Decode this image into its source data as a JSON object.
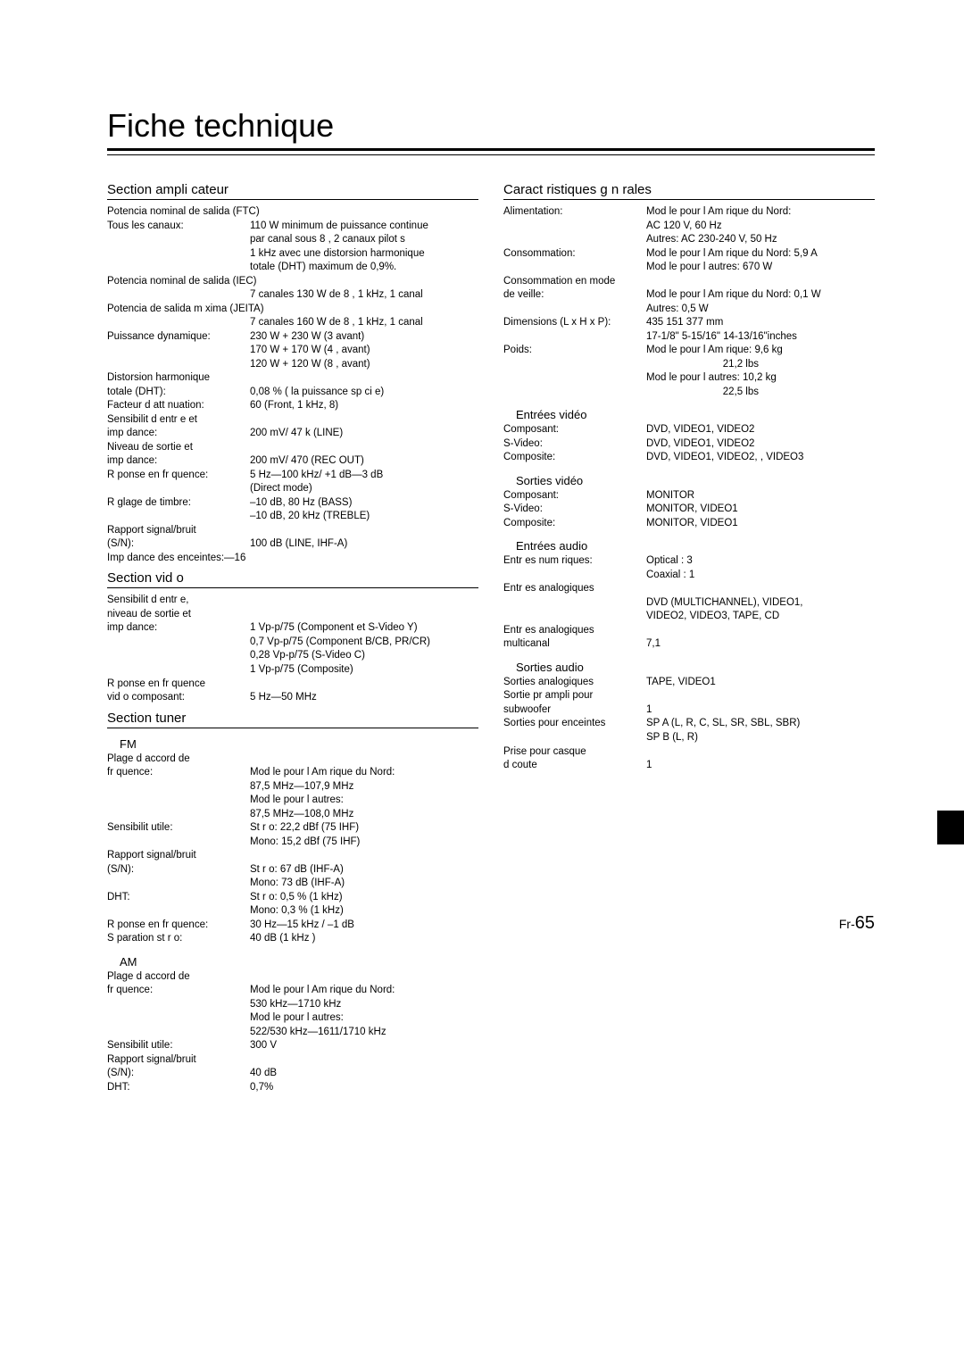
{
  "title": "Fiche technique",
  "left": {
    "sections": [
      {
        "head": "Section ampli cateur",
        "blocks": [
          {
            "type": "single",
            "text": "Potencia nominal de salida (FTC)"
          },
          {
            "type": "row",
            "label": "Tous les canaux:",
            "value": "110 W minimum de puissance continue"
          },
          {
            "type": "value",
            "text": "par canal sous 8 , 2 canaux pilot s"
          },
          {
            "type": "value",
            "text": "1 kHz avec une distorsion harmonique"
          },
          {
            "type": "value",
            "text": "totale (DHT) maximum de 0,9%."
          },
          {
            "type": "single",
            "text": "Potencia nominal de salida (IEC)"
          },
          {
            "type": "value",
            "text": "7 canales  130 W de 8 , 1 kHz, 1 canal"
          },
          {
            "type": "single",
            "text": "Potencia de salida m xima (JEITA)"
          },
          {
            "type": "value",
            "text": "7 canales  160 W de 8 , 1 kHz, 1 canal"
          },
          {
            "type": "row",
            "label": "Puissance dynamique:",
            "value": "230 W + 230 W (3 avant)"
          },
          {
            "type": "value",
            "text": "170 W + 170 W (4 , avant)"
          },
          {
            "type": "value",
            "text": "120 W + 120 W (8 , avant)"
          },
          {
            "type": "single",
            "text": "Distorsion harmonique"
          },
          {
            "type": "row",
            "label": "totale (DHT):",
            "value": "0,08 % ( la puissance sp ci e)"
          },
          {
            "type": "row",
            "label": "Facteur d att nuation:",
            "value": "60 (Front, 1 kHz, 8)"
          },
          {
            "type": "single",
            "text": "Sensibilit  d entr e et"
          },
          {
            "type": "row",
            "label": "imp dance:",
            "value": "200 mV/ 47 k (LINE)"
          },
          {
            "type": "single",
            "text": "Niveau de sortie et"
          },
          {
            "type": "row",
            "label": "imp dance:",
            "value": "200 mV/ 470  (REC OUT)"
          },
          {
            "type": "row",
            "label": "R ponse en fr quence:",
            "value": "5 Hz—100 kHz/ +1 dB—3 dB"
          },
          {
            "type": "value",
            "text": "(Direct mode)"
          },
          {
            "type": "row",
            "label": "R glage de timbre:",
            "value": "–10 dB, 80 Hz (BASS)"
          },
          {
            "type": "value",
            "text": "–10 dB, 20 kHz (TREBLE)"
          },
          {
            "type": "single",
            "text": "Rapport signal/bruit"
          },
          {
            "type": "row",
            "label": "(S/N):",
            "value": "100 dB (LINE, IHF-A)"
          },
          {
            "type": "single",
            "text": "Imp dance des enceintes:—16"
          }
        ]
      },
      {
        "head": "Section vid o",
        "blocks": [
          {
            "type": "single",
            "text": "Sensibilit  d entr e,"
          },
          {
            "type": "single",
            "text": "niveau de sortie et"
          },
          {
            "type": "row",
            "label": "imp dance:",
            "value": "1 Vp-p/75  (Component et S-Video Y)"
          },
          {
            "type": "value",
            "text": "0,7 Vp-p/75  (Component B/CB, PR/CR)"
          },
          {
            "type": "value",
            "text": "0,28 Vp-p/75  (S-Video C)"
          },
          {
            "type": "value",
            "text": "1 Vp-p/75  (Composite)"
          },
          {
            "type": "single",
            "text": "R ponse en fr quence"
          },
          {
            "type": "row",
            "label": "vid o composant:",
            "value": "5 Hz—50 MHz"
          }
        ]
      },
      {
        "head": "Section tuner",
        "blocks": [
          {
            "type": "sub",
            "text": "FM"
          },
          {
            "type": "single",
            "text": "Plage d accord de"
          },
          {
            "type": "row",
            "label": "fr quence:",
            "value": "Mod le pour l Am rique du Nord:"
          },
          {
            "type": "value",
            "text": "87,5 MHz—107,9 MHz"
          },
          {
            "type": "value",
            "text": "Mod le pour l autres:"
          },
          {
            "type": "value",
            "text": "87,5 MHz—108,0 MHz"
          },
          {
            "type": "row",
            "label": "Sensibilit  utile:",
            "value": "St r o: 22,2 dBf (75  IHF)"
          },
          {
            "type": "value",
            "text": "Mono: 15,2 dBf (75  IHF)"
          },
          {
            "type": "single",
            "text": "Rapport signal/bruit"
          },
          {
            "type": "row",
            "label": "(S/N):",
            "value": "St r o: 67 dB (IHF-A)"
          },
          {
            "type": "value",
            "text": "Mono: 73 dB (IHF-A)"
          },
          {
            "type": "row",
            "label": "DHT:",
            "value": "St r o: 0,5 % (1 kHz)"
          },
          {
            "type": "value",
            "text": "Mono: 0,3 % (1 kHz)"
          },
          {
            "type": "row",
            "label": "R ponse en fr quence:",
            "value": "30 Hz—15 kHz / –1 dB"
          },
          {
            "type": "row",
            "label": "S paration st r o:",
            "value": "40 dB (1 kHz )"
          },
          {
            "type": "sub",
            "text": "AM"
          },
          {
            "type": "single",
            "text": "Plage d accord de"
          },
          {
            "type": "row",
            "label": "fr quence:",
            "value": "Mod le pour l Am rique du Nord:"
          },
          {
            "type": "value",
            "text": "530 kHz—1710 kHz"
          },
          {
            "type": "value",
            "text": "Mod le pour l autres:"
          },
          {
            "type": "value",
            "text": "522/530 kHz—1611/1710 kHz"
          },
          {
            "type": "row",
            "label": "Sensibilit  utile:",
            "value": "300  V"
          },
          {
            "type": "single",
            "text": "Rapport signal/bruit"
          },
          {
            "type": "row",
            "label": "(S/N):",
            "value": "40 dB"
          },
          {
            "type": "row",
            "label": "DHT:",
            "value": "0,7%"
          }
        ]
      }
    ]
  },
  "right": {
    "sections": [
      {
        "head": "Caract ristiques g n rales",
        "blocks": [
          {
            "type": "row",
            "label": "Alimentation:",
            "value": "Mod le pour l Am rique du Nord:"
          },
          {
            "type": "value",
            "text": "        AC 120 V, 60 Hz"
          },
          {
            "type": "value",
            "text": "Autres:  AC 230-240 V, 50 Hz"
          },
          {
            "type": "row",
            "label": "Consommation:",
            "value": "Mod le pour l Am rique du Nord: 5,9 A"
          },
          {
            "type": "value",
            "text": "Mod le pour l autres: 670 W"
          },
          {
            "type": "single",
            "text": "Consommation en mode"
          },
          {
            "type": "row",
            "label": "de veille:",
            "value": "Mod le pour l Am rique du Nord: 0,1 W"
          },
          {
            "type": "value",
            "text": "Autres: 0,5 W"
          },
          {
            "type": "row",
            "label": "Dimensions (L x H x P):",
            "value": "435  151  377 mm"
          },
          {
            "type": "value",
            "text": "17-1/8\"  5-15/16\"  14-13/16\"inches"
          },
          {
            "type": "row",
            "label": "Poids:",
            "value": "Mod le pour l Am rique: 9,6 kg"
          },
          {
            "type": "value-right",
            "text": "21,2 lbs"
          },
          {
            "type": "value",
            "text": "Mod le pour l autres:     10,2 kg"
          },
          {
            "type": "value-right",
            "text": "22,5 lbs"
          },
          {
            "type": "sub",
            "text": "Entrées vidéo"
          },
          {
            "type": "row",
            "label": "Composant:",
            "value": "DVD, VIDEO1, VIDEO2"
          },
          {
            "type": "row",
            "label": "S-Video:",
            "value": "DVD, VIDEO1, VIDEO2"
          },
          {
            "type": "row",
            "label": "Composite:",
            "value": "DVD, VIDEO1, VIDEO2, , VIDEO3"
          },
          {
            "type": "sub",
            "text": "Sorties vidéo"
          },
          {
            "type": "row",
            "label": "Composant:",
            "value": "MONITOR"
          },
          {
            "type": "row",
            "label": "S-Video:",
            "value": "MONITOR, VIDEO1"
          },
          {
            "type": "row",
            "label": "Composite:",
            "value": "MONITOR, VIDEO1"
          },
          {
            "type": "sub",
            "text": "Entrées audio"
          },
          {
            "type": "row",
            "label": "Entr es num riques:",
            "value": "Optical : 3"
          },
          {
            "type": "value",
            "text": "Coaxial : 1"
          },
          {
            "type": "single",
            "text": "Entr es analogiques"
          },
          {
            "type": "value",
            "text": "DVD (MULTICHANNEL), VIDEO1,"
          },
          {
            "type": "value",
            "text": "VIDEO2, VIDEO3, TAPE, CD"
          },
          {
            "type": "single",
            "text": "Entr es analogiques"
          },
          {
            "type": "row",
            "label": "multicanal",
            "value": "7,1"
          },
          {
            "type": "sub",
            "text": "Sorties audio"
          },
          {
            "type": "row",
            "label": "Sorties analogiques",
            "value": "TAPE, VIDEO1"
          },
          {
            "type": "single",
            "text": "Sortie pr ampli pour"
          },
          {
            "type": "row",
            "label": "subwoofer",
            "value": "1"
          },
          {
            "type": "row",
            "label": "Sorties pour enceintes",
            "value": "SP A (L, R, C, SL, SR, SBL, SBR)"
          },
          {
            "type": "value",
            "text": "SP B (L, R)"
          },
          {
            "type": "single",
            "text": "Prise pour casque"
          },
          {
            "type": "row",
            "label": "d  coute",
            "value": "1"
          }
        ]
      }
    ]
  },
  "pagenum_prefix": "Fr-",
  "pagenum": "65"
}
